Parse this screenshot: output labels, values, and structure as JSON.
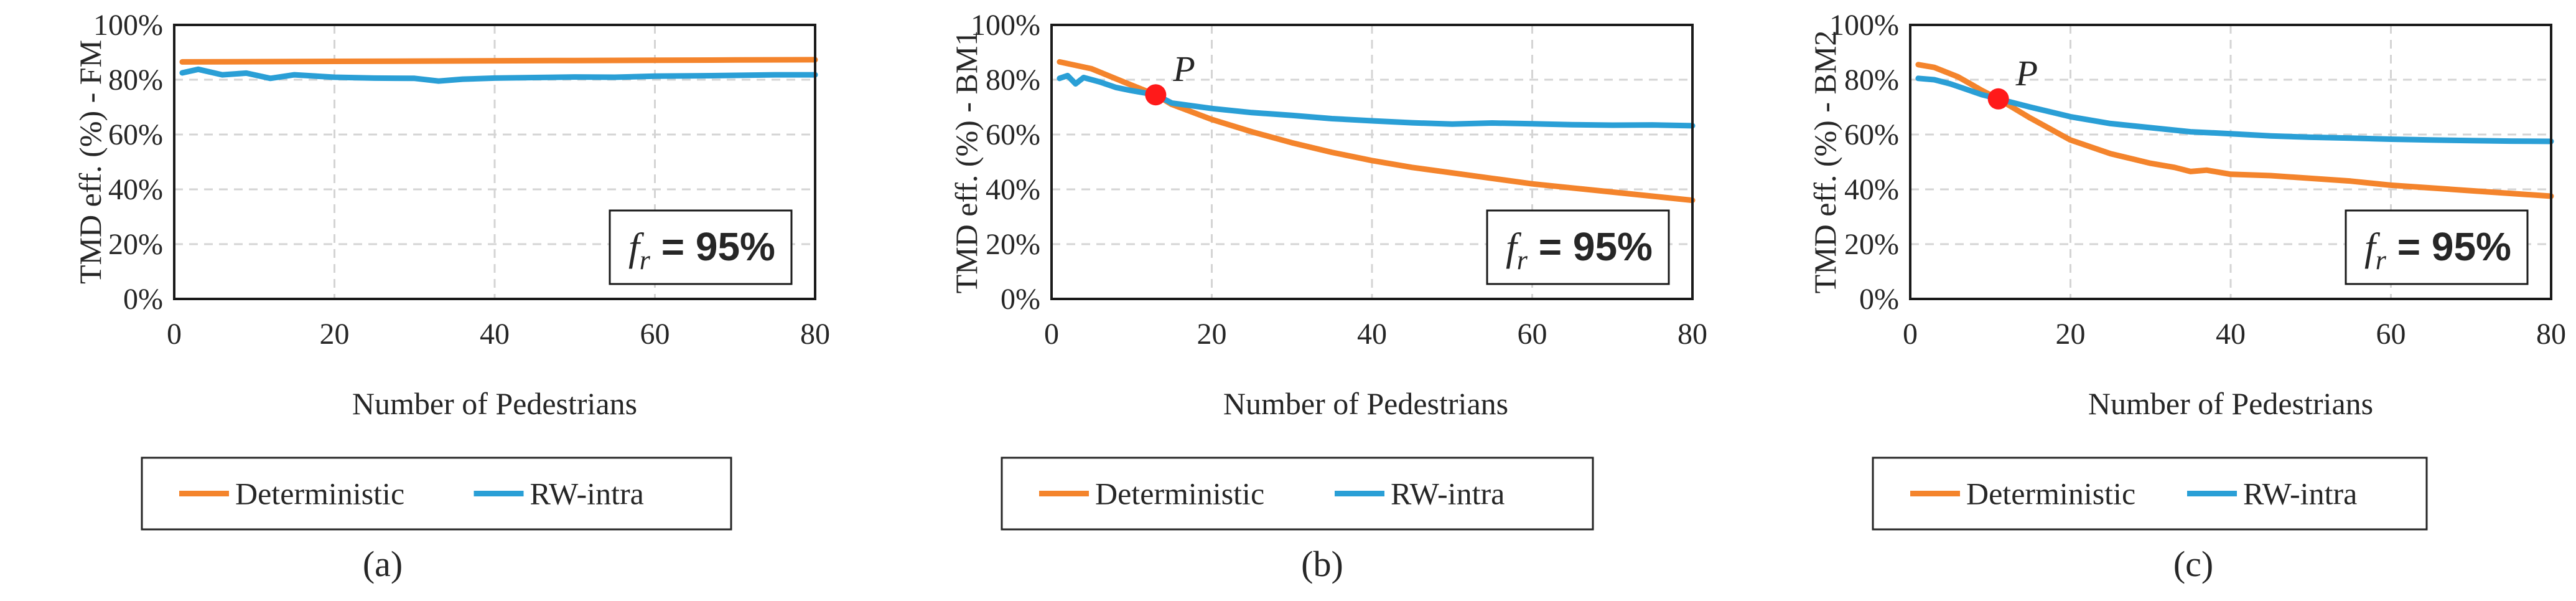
{
  "chart_data": [
    {
      "type": "line",
      "panel_label": "(a)",
      "ylabel": "TMD eff. (%) - FM",
      "xlabel": "Number of Pedestrians",
      "xlim": [
        0,
        80
      ],
      "ylim": [
        0,
        100
      ],
      "x_ticks": [
        "0",
        "20",
        "40",
        "60",
        "80"
      ],
      "y_ticks": [
        "0%",
        "20%",
        "40%",
        "60%",
        "80%",
        "100%"
      ],
      "annotation": {
        "text": "= 95%",
        "symbol": "f",
        "subscript": "r"
      },
      "legend_position": "bottom",
      "series": [
        {
          "name": "Deterministic",
          "color": "#F4842C",
          "x": [
            1,
            10,
            20,
            30,
            40,
            50,
            60,
            70,
            80
          ],
          "values": [
            86.5,
            86.6,
            86.7,
            86.8,
            86.9,
            87.0,
            87.1,
            87.2,
            87.3
          ]
        },
        {
          "name": "RW-intra",
          "color": "#2A9FD6",
          "x": [
            1,
            3,
            6,
            9,
            12,
            15,
            20,
            25,
            30,
            33,
            36,
            40,
            45,
            50,
            55,
            60,
            65,
            70,
            75,
            80
          ],
          "values": [
            82.5,
            83.8,
            81.8,
            82.4,
            80.5,
            81.8,
            80.9,
            80.6,
            80.5,
            79.5,
            80.2,
            80.6,
            80.8,
            81.0,
            80.9,
            81.3,
            81.4,
            81.6,
            81.8,
            81.8
          ]
        }
      ]
    },
    {
      "type": "line",
      "panel_label": "(b)",
      "ylabel": "TMD eff. (%) - BM1",
      "xlabel": "Number of Pedestrians",
      "xlim": [
        0,
        80
      ],
      "ylim": [
        0,
        100
      ],
      "x_ticks": [
        "0",
        "20",
        "40",
        "60",
        "80"
      ],
      "y_ticks": [
        "0%",
        "20%",
        "40%",
        "60%",
        "80%",
        "100%"
      ],
      "annotation": {
        "text": "= 95%",
        "symbol": "f",
        "subscript": "r"
      },
      "point": {
        "label": "P",
        "x": 13,
        "y": 74.5,
        "color": "#FF1A1A"
      },
      "legend_position": "bottom",
      "series": [
        {
          "name": "Deterministic",
          "color": "#F4842C",
          "x": [
            1,
            5,
            10,
            13,
            15,
            20,
            25,
            30,
            35,
            40,
            45,
            50,
            55,
            60,
            65,
            70,
            75,
            80
          ],
          "values": [
            86.5,
            84,
            78,
            74.5,
            71,
            65.5,
            61,
            57,
            53.5,
            50.5,
            48,
            46,
            44,
            42,
            40.5,
            39,
            37.5,
            36
          ]
        },
        {
          "name": "RW-intra",
          "color": "#2A9FD6",
          "x": [
            1,
            2,
            3,
            4,
            6,
            8,
            10,
            13,
            15,
            20,
            25,
            30,
            35,
            40,
            45,
            50,
            55,
            60,
            65,
            70,
            75,
            80
          ],
          "values": [
            80.5,
            81.5,
            78.5,
            80.8,
            79.2,
            77.2,
            76,
            74.5,
            71.5,
            69.5,
            68,
            67,
            65.8,
            65,
            64.3,
            63.8,
            64.2,
            63.9,
            63.6,
            63.4,
            63.5,
            63.2
          ]
        }
      ]
    },
    {
      "type": "line",
      "panel_label": "(c)",
      "ylabel": "TMD eff. (%) - BM2",
      "xlabel": "Number of Pedestrians",
      "xlim": [
        0,
        80
      ],
      "ylim": [
        0,
        100
      ],
      "x_ticks": [
        "0",
        "20",
        "40",
        "60",
        "80"
      ],
      "y_ticks": [
        "0%",
        "20%",
        "40%",
        "60%",
        "80%",
        "100%"
      ],
      "annotation": {
        "text": "= 95%",
        "symbol": "f",
        "subscript": "r"
      },
      "point": {
        "label": "P",
        "x": 11,
        "y": 73,
        "color": "#FF1A1A"
      },
      "legend_position": "bottom",
      "series": [
        {
          "name": "Deterministic",
          "color": "#F4842C",
          "x": [
            1,
            3,
            6,
            9,
            11,
            15,
            20,
            25,
            30,
            33,
            35,
            37,
            40,
            45,
            50,
            55,
            60,
            65,
            70,
            75,
            80
          ],
          "values": [
            85.5,
            84.5,
            81,
            76,
            73,
            66,
            58,
            53,
            49.5,
            48,
            46.5,
            47,
            45.5,
            45,
            44,
            43,
            41.5,
            40.5,
            39.5,
            38.5,
            37.5
          ]
        },
        {
          "name": "RW-intra",
          "color": "#2A9FD6",
          "x": [
            1,
            3,
            5,
            7,
            9,
            11,
            15,
            20,
            25,
            30,
            35,
            40,
            45,
            50,
            55,
            60,
            65,
            70,
            75,
            80
          ],
          "values": [
            80.5,
            80,
            78.5,
            76.5,
            74.5,
            73,
            70,
            66.5,
            64,
            62.5,
            61,
            60.3,
            59.5,
            59,
            58.7,
            58.3,
            58,
            57.8,
            57.6,
            57.5
          ]
        }
      ]
    }
  ]
}
